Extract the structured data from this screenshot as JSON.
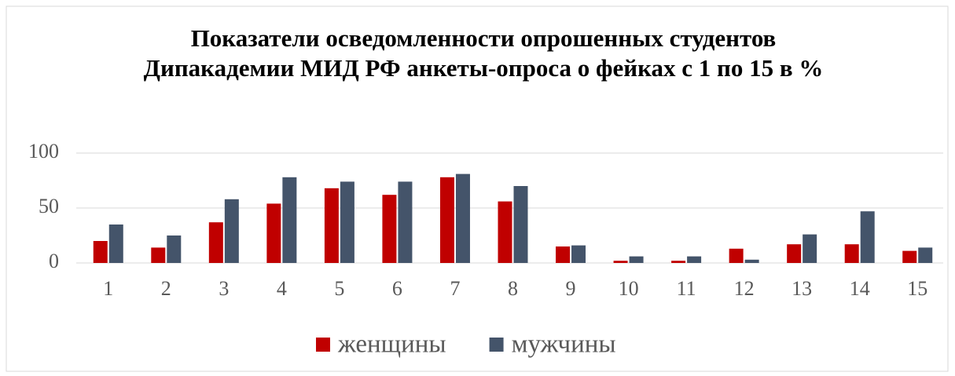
{
  "chart_data": {
    "type": "bar",
    "title": "Показатели осведомленности опрошенных  студентов Дипакадемии МИД РФ анкеты-опроса о фейках  с 1 по 15 в %",
    "categories": [
      "1",
      "2",
      "3",
      "4",
      "5",
      "6",
      "7",
      "8",
      "9",
      "10",
      "11",
      "12",
      "13",
      "14",
      "15"
    ],
    "series": [
      {
        "name": "женщины",
        "color": "#c00000",
        "values": [
          20,
          14,
          37,
          54,
          68,
          62,
          78,
          56,
          15,
          2,
          2,
          13,
          17,
          17,
          11
        ]
      },
      {
        "name": "мужчины",
        "color": "#44546a",
        "values": [
          35,
          25,
          58,
          78,
          74,
          74,
          81,
          70,
          16,
          6,
          6,
          3,
          26,
          47,
          14
        ]
      }
    ],
    "ylim": [
      0,
      100
    ],
    "yticks": [
      0,
      50,
      100
    ],
    "grid": true,
    "legend": "bottom"
  }
}
